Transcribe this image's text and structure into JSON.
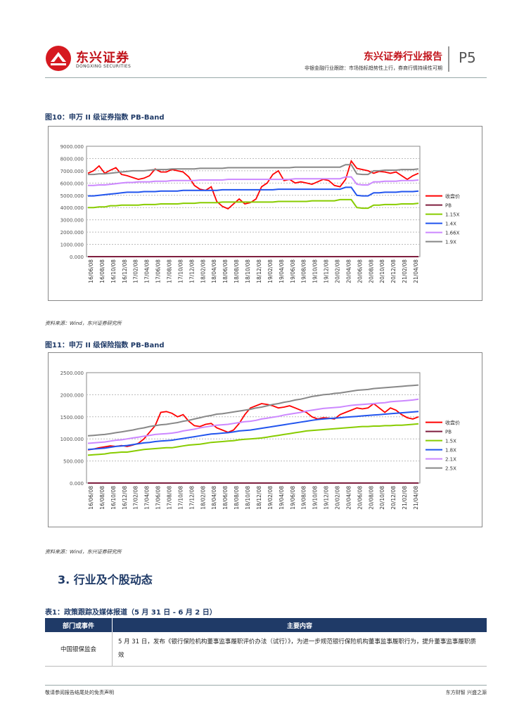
{
  "header": {
    "logo_text": "东兴证券",
    "logo_sub": "DONGXING SECURITIES",
    "report_type": "东兴证券行业报告",
    "subtitle": "非银金融行业跟踪：市场指标趋势性上行，券商行情持续性可期",
    "page": "P5"
  },
  "figures": [
    {
      "title": "图10：申万 II 级证券指数 PB-Band",
      "source": "资料来源：Wind，东兴证券研究所",
      "chart_data": {
        "type": "line",
        "y_ticks": [
          "9000.000",
          "8000.000",
          "7000.000",
          "6000.000",
          "5000.000",
          "4000.000",
          "3000.000",
          "2000.000",
          "1000.000",
          "0.000"
        ],
        "ylim": [
          0,
          9000
        ],
        "x_ticks": [
          "16/06/08",
          "16/08/08",
          "16/10/08",
          "16/12/08",
          "17/02/08",
          "17/04/08",
          "17/06/08",
          "17/08/08",
          "17/10/08",
          "17/12/08",
          "18/02/08",
          "18/04/08",
          "18/06/08",
          "18/08/08",
          "18/10/08",
          "18/12/08",
          "19/02/08",
          "19/04/08",
          "19/06/08",
          "19/08/08",
          "19/10/08",
          "19/12/08",
          "20/02/08",
          "20/04/08",
          "20/06/08",
          "20/08/08",
          "20/10/08",
          "20/12/08",
          "21/02/08",
          "21/04/08"
        ],
        "series": [
          {
            "name": "收盘价",
            "color": "#ff0000",
            "values": [
              6800,
              7000,
              7400,
              6800,
              7050,
              7250,
              6700,
              6600,
              6450,
              6300,
              6400,
              6600,
              7150,
              6900,
              6900,
              7100,
              7000,
              6900,
              6500,
              5800,
              5500,
              5400,
              5700,
              4500,
              4100,
              3900,
              4300,
              4700,
              4300,
              4400,
              4700,
              5700,
              6000,
              6700,
              7000,
              6200,
              6300,
              6000,
              6100,
              6000,
              5900,
              6100,
              6300,
              6200,
              5800,
              5700,
              6300,
              7800,
              7200,
              7100,
              7000,
              6800,
              6950,
              6900,
              6800,
              6900,
              6600,
              6300,
              6600,
              6800
            ]
          },
          {
            "name": "PB",
            "color": "#7f1f3f",
            "values": [
              0,
              0,
              0,
              0,
              0,
              0,
              0,
              0,
              0,
              0,
              0,
              0,
              0,
              0,
              0,
              0,
              0,
              0,
              0,
              0,
              0,
              0,
              0,
              0,
              0,
              0,
              0,
              0,
              0,
              0,
              0,
              0,
              0,
              0,
              0,
              0,
              0,
              0,
              0,
              0,
              0,
              0,
              0,
              0,
              0,
              0,
              0,
              0,
              0,
              0,
              0,
              0,
              0,
              0,
              0,
              0,
              0,
              0,
              0,
              0
            ]
          },
          {
            "name": "1.15X",
            "color": "#88cc00",
            "values": [
              4000,
              4000,
              4050,
              4050,
              4150,
              4150,
              4200,
              4200,
              4200,
              4200,
              4250,
              4250,
              4250,
              4300,
              4300,
              4300,
              4300,
              4350,
              4350,
              4350,
              4400,
              4400,
              4400,
              4400,
              4450,
              4450,
              4450,
              4450,
              4450,
              4450,
              4450,
              4450,
              4450,
              4450,
              4500,
              4500,
              4500,
              4500,
              4500,
              4500,
              4550,
              4550,
              4550,
              4550,
              4550,
              4650,
              4650,
              4650,
              4000,
              3950,
              3950,
              4200,
              4200,
              4250,
              4250,
              4250,
              4300,
              4300,
              4300,
              4350
            ]
          },
          {
            "name": "1.4X",
            "color": "#2255ee",
            "values": [
              4950,
              4950,
              5000,
              5050,
              5100,
              5150,
              5200,
              5250,
              5250,
              5250,
              5300,
              5300,
              5300,
              5350,
              5350,
              5350,
              5350,
              5400,
              5400,
              5400,
              5400,
              5400,
              5400,
              5400,
              5450,
              5450,
              5450,
              5450,
              5450,
              5450,
              5450,
              5450,
              5450,
              5450,
              5500,
              5500,
              5500,
              5500,
              5500,
              5500,
              5500,
              5500,
              5500,
              5500,
              5500,
              5500,
              5650,
              5650,
              5000,
              4950,
              4950,
              5200,
              5200,
              5250,
              5250,
              5250,
              5300,
              5300,
              5300,
              5350
            ]
          },
          {
            "name": "1.66X",
            "color": "#cc88ff",
            "values": [
              5800,
              5800,
              5850,
              5850,
              5900,
              5950,
              6000,
              6050,
              6050,
              6100,
              6100,
              6100,
              6150,
              6150,
              6150,
              6200,
              6200,
              6200,
              6200,
              6200,
              6250,
              6250,
              6250,
              6250,
              6250,
              6300,
              6300,
              6300,
              6300,
              6300,
              6300,
              6300,
              6300,
              6300,
              6300,
              6300,
              6300,
              6350,
              6350,
              6350,
              6350,
              6350,
              6350,
              6350,
              6350,
              6350,
              6500,
              6500,
              5900,
              5850,
              5850,
              6100,
              6100,
              6150,
              6150,
              6150,
              6200,
              6200,
              6200,
              6250
            ]
          },
          {
            "name": "1.9X",
            "color": "#888888",
            "values": [
              6700,
              6700,
              6750,
              6750,
              6800,
              6850,
              6900,
              6950,
              7000,
              7000,
              7000,
              7050,
              7100,
              7100,
              7100,
              7150,
              7150,
              7150,
              7150,
              7150,
              7200,
              7200,
              7200,
              7200,
              7200,
              7250,
              7250,
              7250,
              7250,
              7250,
              7250,
              7250,
              7250,
              7250,
              7250,
              7250,
              7250,
              7300,
              7300,
              7300,
              7300,
              7300,
              7300,
              7300,
              7300,
              7300,
              7500,
              7500,
              6750,
              6700,
              6700,
              7000,
              7000,
              7050,
              7050,
              7050,
              7100,
              7100,
              7100,
              7150
            ]
          }
        ]
      }
    },
    {
      "title": "图11：申万 II 级保险指数 PB-Band",
      "source": "资料来源：Wind，东兴证券研究所",
      "chart_data": {
        "type": "line",
        "y_ticks": [
          "2500.000",
          "2000.000",
          "1500.000",
          "1000.000",
          "500.000",
          "0.000"
        ],
        "ylim": [
          0,
          2500
        ],
        "x_ticks": [
          "16/06/08",
          "16/08/08",
          "16/10/08",
          "16/12/08",
          "17/02/08",
          "17/04/08",
          "17/06/08",
          "17/08/08",
          "17/10/08",
          "17/12/08",
          "18/02/08",
          "18/04/08",
          "18/06/08",
          "18/08/08",
          "18/10/08",
          "18/12/08",
          "19/02/08",
          "19/04/08",
          "19/06/08",
          "19/08/08",
          "19/10/08",
          "19/12/08",
          "20/02/08",
          "20/04/08",
          "20/06/08",
          "20/08/08",
          "20/10/08",
          "20/12/08",
          "21/02/08",
          "21/04/08"
        ],
        "series": [
          {
            "name": "收盘价",
            "color": "#ff0000",
            "values": [
              750,
              770,
              800,
              820,
              840,
              830,
              850,
              830,
              860,
              900,
              1000,
              1150,
              1300,
              1600,
              1620,
              1580,
              1500,
              1550,
              1400,
              1300,
              1280,
              1330,
              1350,
              1250,
              1200,
              1150,
              1200,
              1350,
              1550,
              1700,
              1750,
              1800,
              1780,
              1750,
              1700,
              1720,
              1750,
              1700,
              1650,
              1600,
              1500,
              1450,
              1480,
              1470,
              1450,
              1550,
              1600,
              1650,
              1700,
              1680,
              1700,
              1800,
              1700,
              1600,
              1700,
              1650,
              1550,
              1480,
              1450,
              1500
            ]
          },
          {
            "name": "PB",
            "color": "#7f1f3f",
            "values": [
              0,
              0,
              0,
              0,
              0,
              0,
              0,
              0,
              0,
              0,
              0,
              0,
              0,
              0,
              0,
              0,
              0,
              0,
              0,
              0,
              0,
              0,
              0,
              0,
              0,
              0,
              0,
              0,
              0,
              0,
              0,
              0,
              0,
              0,
              0,
              0,
              0,
              0,
              0,
              0,
              0,
              0,
              0,
              0,
              0,
              0,
              0,
              0,
              0,
              0,
              0,
              0,
              0,
              0,
              0,
              0,
              0,
              0,
              0,
              0
            ]
          },
          {
            "name": "1.5X",
            "color": "#88cc00",
            "values": [
              630,
              640,
              650,
              660,
              680,
              690,
              700,
              700,
              720,
              740,
              760,
              770,
              780,
              790,
              800,
              800,
              820,
              840,
              860,
              870,
              880,
              900,
              920,
              930,
              940,
              950,
              960,
              980,
              990,
              1000,
              1010,
              1020,
              1040,
              1060,
              1080,
              1100,
              1120,
              1140,
              1160,
              1180,
              1190,
              1200,
              1210,
              1220,
              1230,
              1240,
              1250,
              1260,
              1270,
              1280,
              1280,
              1290,
              1290,
              1300,
              1300,
              1310,
              1310,
              1320,
              1330,
              1340
            ]
          },
          {
            "name": "1.8X",
            "color": "#2255ee",
            "values": [
              760,
              770,
              780,
              790,
              810,
              830,
              840,
              850,
              870,
              890,
              910,
              920,
              940,
              950,
              960,
              970,
              990,
              1010,
              1030,
              1050,
              1070,
              1090,
              1110,
              1120,
              1130,
              1140,
              1160,
              1180,
              1190,
              1200,
              1220,
              1240,
              1260,
              1280,
              1300,
              1320,
              1340,
              1360,
              1380,
              1400,
              1420,
              1440,
              1450,
              1460,
              1470,
              1480,
              1490,
              1500,
              1510,
              1520,
              1530,
              1540,
              1550,
              1560,
              1570,
              1580,
              1590,
              1600,
              1610,
              1620
            ]
          },
          {
            "name": "2.1X",
            "color": "#cc88ff",
            "values": [
              900,
              910,
              920,
              930,
              950,
              970,
              980,
              1000,
              1020,
              1040,
              1060,
              1080,
              1100,
              1110,
              1120,
              1130,
              1150,
              1180,
              1200,
              1220,
              1250,
              1270,
              1290,
              1310,
              1320,
              1330,
              1350,
              1370,
              1390,
              1400,
              1420,
              1450,
              1470,
              1490,
              1510,
              1540,
              1560,
              1580,
              1600,
              1630,
              1650,
              1670,
              1690,
              1700,
              1710,
              1720,
              1740,
              1760,
              1770,
              1780,
              1790,
              1800,
              1810,
              1820,
              1840,
              1850,
              1860,
              1870,
              1880,
              1900
            ]
          },
          {
            "name": "2.5X",
            "color": "#888888",
            "values": [
              1070,
              1080,
              1090,
              1100,
              1120,
              1140,
              1160,
              1180,
              1200,
              1230,
              1250,
              1280,
              1300,
              1320,
              1330,
              1350,
              1370,
              1400,
              1420,
              1450,
              1480,
              1510,
              1530,
              1560,
              1570,
              1590,
              1610,
              1630,
              1650,
              1670,
              1700,
              1720,
              1750,
              1780,
              1800,
              1830,
              1850,
              1880,
              1900,
              1930,
              1960,
              1980,
              2000,
              2010,
              2030,
              2040,
              2060,
              2080,
              2100,
              2110,
              2120,
              2140,
              2150,
              2160,
              2170,
              2180,
              2190,
              2200,
              2210,
              2220
            ]
          }
        ]
      }
    }
  ],
  "section": {
    "title": "3.  行业及个股动态"
  },
  "table": {
    "title": "表1：政策跟踪及媒体报道（5 月 31 日 - 6 月 2 日）",
    "headers": [
      "部门或事件",
      "主要内容"
    ],
    "rows": [
      {
        "dept": "中国银保监会",
        "content": "5 月 31 日，发布《银行保险机构董事监事履职评价办法（试行）》，为进一步规范银行保险机构董事监事履职行为，提升董事监事履职质效"
      }
    ]
  },
  "footer": {
    "left": "敬请参阅报告结尾处的免责声明",
    "right": "东方财智  兴盛之源"
  }
}
